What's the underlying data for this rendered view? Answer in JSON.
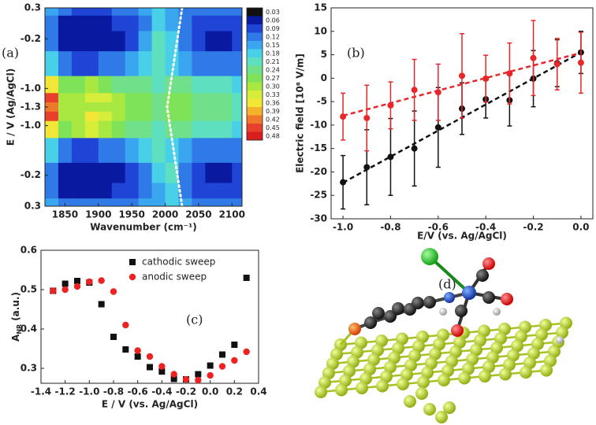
{
  "chart_data": [
    {
      "type": "heatmap",
      "annotation": "(a)",
      "xlabel": "Wavenumber (cm⁻¹)",
      "ylabel": "E / V (Ag/AgCl)",
      "xlim": [
        1820,
        2115
      ],
      "xticks": [
        1850,
        1900,
        1950,
        2000,
        2050,
        2100
      ],
      "yticks": [
        0.3,
        -0.2,
        {
          "value": -1.0,
          "label": "-1.0"
        },
        -1.3,
        {
          "value": -1.0,
          "label": "-1.0"
        },
        -0.2,
        0.3
      ],
      "x": [
        1830,
        1850,
        1870,
        1890,
        1910,
        1930,
        1950,
        1970,
        1990,
        2010,
        2030,
        2050,
        2070,
        2090,
        2110
      ],
      "y": [
        0.3,
        0.05,
        -0.2,
        -0.6,
        -1.0,
        -1.15,
        -1.3,
        -1.15,
        -1.0,
        -0.6,
        -0.2,
        0.05,
        0.3
      ],
      "z": [
        [
          0.15,
          0.12,
          0.09,
          0.09,
          0.09,
          0.12,
          0.12,
          0.15,
          0.18,
          0.15,
          0.12,
          0.12,
          0.12,
          0.12,
          0.12
        ],
        [
          0.12,
          0.06,
          0.06,
          0.06,
          0.06,
          0.09,
          0.09,
          0.12,
          0.18,
          0.15,
          0.12,
          0.09,
          0.09,
          0.09,
          0.09
        ],
        [
          0.12,
          0.06,
          0.06,
          0.06,
          0.06,
          0.06,
          0.09,
          0.15,
          0.21,
          0.18,
          0.12,
          0.09,
          0.06,
          0.06,
          0.09
        ],
        [
          0.18,
          0.12,
          0.09,
          0.09,
          0.12,
          0.12,
          0.15,
          0.18,
          0.21,
          0.18,
          0.15,
          0.12,
          0.12,
          0.12,
          0.12
        ],
        [
          0.36,
          0.27,
          0.27,
          0.3,
          0.27,
          0.24,
          0.24,
          0.24,
          0.21,
          0.24,
          0.24,
          0.21,
          0.21,
          0.21,
          0.18
        ],
        [
          0.45,
          0.3,
          0.3,
          0.33,
          0.33,
          0.3,
          0.27,
          0.27,
          0.24,
          0.27,
          0.27,
          0.24,
          0.24,
          0.24,
          0.21
        ],
        [
          0.42,
          0.3,
          0.3,
          0.3,
          0.3,
          0.3,
          0.27,
          0.27,
          0.24,
          0.27,
          0.27,
          0.24,
          0.24,
          0.24,
          0.21
        ],
        [
          0.45,
          0.3,
          0.3,
          0.36,
          0.33,
          0.3,
          0.27,
          0.27,
          0.24,
          0.27,
          0.27,
          0.24,
          0.24,
          0.24,
          0.21
        ],
        [
          0.36,
          0.27,
          0.3,
          0.33,
          0.3,
          0.27,
          0.24,
          0.24,
          0.21,
          0.24,
          0.24,
          0.21,
          0.21,
          0.21,
          0.18
        ],
        [
          0.18,
          0.12,
          0.09,
          0.09,
          0.12,
          0.12,
          0.15,
          0.18,
          0.21,
          0.18,
          0.15,
          0.12,
          0.12,
          0.12,
          0.12
        ],
        [
          0.12,
          0.06,
          0.06,
          0.06,
          0.06,
          0.06,
          0.09,
          0.12,
          0.18,
          0.21,
          0.12,
          0.09,
          0.06,
          0.06,
          0.09
        ],
        [
          0.12,
          0.06,
          0.06,
          0.06,
          0.06,
          0.09,
          0.09,
          0.12,
          0.15,
          0.18,
          0.12,
          0.09,
          0.09,
          0.09,
          0.09
        ],
        [
          0.15,
          0.12,
          0.12,
          0.12,
          0.12,
          0.12,
          0.12,
          0.15,
          0.15,
          0.18,
          0.15,
          0.12,
          0.12,
          0.12,
          0.12
        ]
      ],
      "colorbar": {
        "ticks": [
          0.03,
          0.06,
          0.09,
          0.12,
          0.15,
          0.18,
          0.21,
          0.24,
          0.27,
          {
            "value": 0.3,
            "label": "0.30"
          },
          0.33,
          0.36,
          0.39,
          0.42,
          0.45,
          0.48
        ],
        "colors": [
          "#111111",
          "#0a1aa0",
          "#1f45d6",
          "#2f7ae6",
          "#3aa6f0",
          "#48d0e8",
          "#5ee0c0",
          "#70e08a",
          "#7fe35a",
          "#a8e840",
          "#d6ee3a",
          "#f2e636",
          "#f5b22a",
          "#f0782a",
          "#e8402a",
          "#d81e1e"
        ]
      }
    },
    {
      "type": "errorbar",
      "annotation": "(b)",
      "xlabel": "E/V (vs. Ag/AgCl)",
      "ylabel": "Electric field [10⁸ V/m]",
      "xlim": [
        -1.05,
        0.05
      ],
      "ylim": [
        -30,
        15
      ],
      "xticks": [
        {
          "value": -1.0,
          "label": "-1.0"
        },
        -0.8,
        -0.6,
        -0.4,
        -0.2,
        {
          "value": 0.0,
          "label": "0.0"
        }
      ],
      "yticks": [
        -30,
        -25,
        -20,
        -15,
        -10,
        -5,
        0,
        5,
        10,
        15
      ],
      "x": [
        -1.0,
        -0.9,
        -0.8,
        -0.7,
        -0.6,
        -0.5,
        -0.4,
        -0.3,
        -0.2,
        -0.1,
        0.0
      ],
      "series": [
        {
          "color": "#111111",
          "values": [
            -22.2,
            -19,
            -16.8,
            -15,
            -10.5,
            -6.5,
            -4.5,
            -4.7,
            -0.1,
            3.2,
            5.5
          ],
          "errors": [
            5.7,
            8,
            8.2,
            8,
            8.5,
            5.5,
            4,
            5.5,
            6,
            5,
            4.5
          ]
        },
        {
          "color": "#e8272a",
          "values": [
            -8.2,
            -8.5,
            -5.8,
            -2.5,
            -3,
            0.5,
            -0.1,
            1,
            4.3,
            3,
            3.3
          ],
          "errors": [
            5,
            7,
            5,
            6.5,
            6,
            9,
            5,
            6.5,
            8,
            5.5,
            6.5
          ]
        }
      ],
      "fits": [
        {
          "color": "#111111",
          "x": [
            -1.0,
            0.0
          ],
          "values": [
            -22.3,
            5.5
          ]
        },
        {
          "color": "#e8272a",
          "x": [
            -1.0,
            0.0
          ],
          "values": [
            -8,
            5.4
          ]
        }
      ]
    },
    {
      "type": "scatter",
      "annotation": "(c)",
      "xlabel": "E / V (vs. Ag/AgCl)",
      "ylabel": [
        "A",
        "NR",
        "(a.u.)"
      ],
      "xlim": [
        -1.4,
        0.4
      ],
      "ylim": [
        0.262,
        0.6
      ],
      "xticks": [
        -1.4,
        -1.2,
        {
          "value": -1.0,
          "label": "-1.0"
        },
        -0.8,
        -0.6,
        -0.4,
        -0.2,
        {
          "value": 0.0,
          "label": "0.0"
        },
        0.2,
        0.4
      ],
      "yticks": [
        0.3,
        0.4,
        0.5,
        0.6
      ],
      "legend": "upper right",
      "x": [
        -1.3,
        -1.2,
        -1.1,
        -1.0,
        -0.9,
        -0.8,
        -0.7,
        -0.6,
        -0.5,
        -0.4,
        -0.3,
        -0.2,
        -0.1,
        0.0,
        0.1,
        0.2,
        0.3
      ],
      "series": [
        {
          "name": "cathodic sweep",
          "color": "#111111",
          "marker": "square",
          "values": [
            0.497,
            0.515,
            0.522,
            0.518,
            0.463,
            0.38,
            0.348,
            0.33,
            0.303,
            0.292,
            0.273,
            0.272,
            0.285,
            0.307,
            0.335,
            0.36,
            0.53
          ]
        },
        {
          "name": "anodic sweep",
          "color": "#ee2222",
          "marker": "circle",
          "values": [
            0.497,
            0.5,
            0.508,
            0.52,
            0.523,
            0.495,
            0.41,
            0.345,
            0.33,
            0.305,
            0.285,
            0.272,
            0.27,
            0.282,
            0.305,
            0.32,
            0.342
          ]
        }
      ]
    }
  ],
  "panel_d": {
    "label": "(d)"
  }
}
